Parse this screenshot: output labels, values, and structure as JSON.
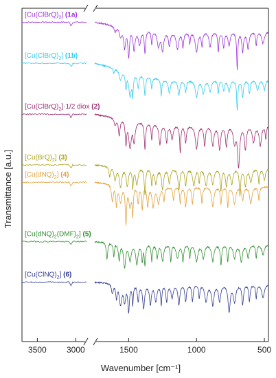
{
  "chart_data": {
    "type": "line",
    "xlabel": "Wavenumber [cm⁻¹]",
    "ylabel": "Transmittance [a.u.]",
    "x_axis": {
      "reversed": true,
      "break": true,
      "ranges": [
        [
          3700,
          2860
        ],
        [
          1750,
          470
        ]
      ],
      "ticks": [
        {
          "value": 3500,
          "label": "3500"
        },
        {
          "value": 3000,
          "label": "3000"
        },
        {
          "value": 1500,
          "label": "1500"
        },
        {
          "value": 1000,
          "label": "1000"
        },
        {
          "value": 500,
          "label": "500"
        }
      ]
    },
    "y_ticks_labeled": false,
    "grid": false,
    "legend_position": "left, above each trace",
    "series": [
      {
        "name": "[Cu(ClBrQ)₂] (1a)",
        "formula": "[Cu(ClBrQ)",
        "sub": "2",
        "suffix": "] ",
        "id": "(1a)",
        "color": "#9b30d9",
        "baseline_high": 0.958,
        "baseline_low": 0.93,
        "bands": [
          [
            1600,
            0.018
          ],
          [
            1560,
            0.03
          ],
          [
            1530,
            0.06
          ],
          [
            1500,
            0.085
          ],
          [
            1460,
            0.065
          ],
          [
            1420,
            0.045
          ],
          [
            1380,
            0.07
          ],
          [
            1330,
            0.04
          ],
          [
            1280,
            0.045
          ],
          [
            1250,
            0.055
          ],
          [
            1200,
            0.04
          ],
          [
            1140,
            0.05
          ],
          [
            1100,
            0.045
          ],
          [
            1050,
            0.035
          ],
          [
            1000,
            0.06
          ],
          [
            960,
            0.04
          ],
          [
            900,
            0.045
          ],
          [
            840,
            0.06
          ],
          [
            800,
            0.045
          ],
          [
            760,
            0.04
          ],
          [
            700,
            0.11
          ],
          [
            660,
            0.06
          ],
          [
            620,
            0.05
          ],
          [
            560,
            0.04
          ],
          [
            510,
            0.035
          ]
        ]
      },
      {
        "name": "[Cu(ClBrQ)₂] (1b)",
        "formula": "[Cu(ClBrQ)",
        "sub": "2",
        "suffix": "] ",
        "id": "(1b)",
        "color": "#33ccee",
        "baseline_high": 0.835,
        "baseline_low": 0.785,
        "bands": [
          [
            1610,
            0.015
          ],
          [
            1560,
            0.03
          ],
          [
            1520,
            0.045
          ],
          [
            1490,
            0.07
          ],
          [
            1470,
            0.06
          ],
          [
            1430,
            0.04
          ],
          [
            1380,
            0.06
          ],
          [
            1330,
            0.035
          ],
          [
            1260,
            0.05
          ],
          [
            1200,
            0.04
          ],
          [
            1130,
            0.045
          ],
          [
            1080,
            0.035
          ],
          [
            1000,
            0.05
          ],
          [
            950,
            0.04
          ],
          [
            900,
            0.035
          ],
          [
            840,
            0.04
          ],
          [
            800,
            0.03
          ],
          [
            760,
            0.035
          ],
          [
            700,
            0.09
          ],
          [
            660,
            0.05
          ],
          [
            610,
            0.04
          ],
          [
            550,
            0.03
          ],
          [
            500,
            0.03
          ]
        ]
      },
      {
        "name": "[Cu(ClBrQ)₂]·1/2 diox (2)",
        "formula": "[Cu(ClBrQ)",
        "sub": "2",
        "suffix": "]·1/2 diox ",
        "id": "(2)",
        "color": "#9c2c72",
        "baseline_high": 0.682,
        "baseline_low": 0.65,
        "bands": [
          [
            1600,
            0.02
          ],
          [
            1570,
            0.05
          ],
          [
            1520,
            0.07
          ],
          [
            1490,
            0.08
          ],
          [
            1460,
            0.06
          ],
          [
            1380,
            0.08
          ],
          [
            1330,
            0.05
          ],
          [
            1270,
            0.06
          ],
          [
            1220,
            0.05
          ],
          [
            1180,
            0.04
          ],
          [
            1120,
            0.08
          ],
          [
            1080,
            0.05
          ],
          [
            1000,
            0.07
          ],
          [
            940,
            0.06
          ],
          [
            880,
            0.06
          ],
          [
            830,
            0.07
          ],
          [
            780,
            0.06
          ],
          [
            720,
            0.05
          ],
          [
            690,
            0.12
          ],
          [
            640,
            0.07
          ],
          [
            580,
            0.05
          ],
          [
            530,
            0.06
          ],
          [
            490,
            0.04
          ]
        ]
      },
      {
        "name": "[Cu(BrQ)₂] (3)",
        "formula": "[Cu(BrQ)",
        "sub": "2",
        "suffix": "] ",
        "id": "(3)",
        "color": "#aaa21c",
        "baseline_high": 0.53,
        "baseline_low": 0.52,
        "bands": [
          [
            1640,
            0.03
          ],
          [
            1600,
            0.04
          ],
          [
            1560,
            0.06
          ],
          [
            1510,
            0.055
          ],
          [
            1470,
            0.06
          ],
          [
            1440,
            0.05
          ],
          [
            1380,
            0.08
          ],
          [
            1330,
            0.05
          ],
          [
            1300,
            0.045
          ],
          [
            1250,
            0.06
          ],
          [
            1200,
            0.045
          ],
          [
            1130,
            0.065
          ],
          [
            1080,
            0.05
          ],
          [
            1020,
            0.05
          ],
          [
            980,
            0.04
          ],
          [
            930,
            0.05
          ],
          [
            880,
            0.045
          ],
          [
            820,
            0.065
          ],
          [
            780,
            0.05
          ],
          [
            740,
            0.045
          ],
          [
            680,
            0.08
          ],
          [
            640,
            0.05
          ],
          [
            600,
            0.04
          ],
          [
            540,
            0.045
          ],
          [
            500,
            0.035
          ]
        ]
      },
      {
        "name": "[Cu(dNQ)₂] (4)",
        "formula": "[Cu(dNQ)",
        "sub": "2",
        "suffix": "] ",
        "id": "(4)",
        "color": "#e3a23a",
        "baseline_high": 0.478,
        "baseline_low": 0.465,
        "bands": [
          [
            1620,
            0.05
          ],
          [
            1590,
            0.06
          ],
          [
            1560,
            0.05
          ],
          [
            1520,
            0.11
          ],
          [
            1490,
            0.06
          ],
          [
            1470,
            0.08
          ],
          [
            1430,
            0.05
          ],
          [
            1400,
            0.07
          ],
          [
            1360,
            0.06
          ],
          [
            1320,
            0.06
          ],
          [
            1280,
            0.05
          ],
          [
            1240,
            0.04
          ],
          [
            1170,
            0.04
          ],
          [
            1120,
            0.05
          ],
          [
            1080,
            0.06
          ],
          [
            1030,
            0.05
          ],
          [
            960,
            0.05
          ],
          [
            880,
            0.06
          ],
          [
            820,
            0.05
          ],
          [
            770,
            0.06
          ],
          [
            720,
            0.05
          ],
          [
            660,
            0.04
          ],
          [
            600,
            0.05
          ],
          [
            540,
            0.04
          ]
        ]
      },
      {
        "name": "[Cu(dNQ)₂(DMF)₂] (5)",
        "formula": "[Cu(dNQ)",
        "sub": "2",
        "suffix": "(DMF)",
        "sub2": "2",
        "suffix2": "] ",
        "id": "(5)",
        "color": "#2e8e2e",
        "baseline_high": 0.3,
        "baseline_low": 0.292,
        "bands": [
          [
            1660,
            0.05
          ],
          [
            1610,
            0.04
          ],
          [
            1570,
            0.05
          ],
          [
            1530,
            0.07
          ],
          [
            1490,
            0.05
          ],
          [
            1440,
            0.06
          ],
          [
            1400,
            0.05
          ],
          [
            1380,
            0.06
          ],
          [
            1330,
            0.05
          ],
          [
            1290,
            0.04
          ],
          [
            1250,
            0.05
          ],
          [
            1190,
            0.05
          ],
          [
            1140,
            0.04
          ],
          [
            1100,
            0.05
          ],
          [
            1050,
            0.04
          ],
          [
            1000,
            0.05
          ],
          [
            950,
            0.04
          ],
          [
            880,
            0.05
          ],
          [
            820,
            0.06
          ],
          [
            770,
            0.05
          ],
          [
            720,
            0.04
          ],
          [
            670,
            0.05
          ],
          [
            620,
            0.04
          ],
          [
            560,
            0.04
          ],
          [
            510,
            0.03
          ]
        ]
      },
      {
        "name": "[Cu(ClNQ)₂] (6)",
        "formula": "[Cu(ClNQ)",
        "sub": "2",
        "suffix": "] ",
        "id": "(6)",
        "color": "#2f3a8f",
        "baseline_high": 0.178,
        "baseline_low": 0.172,
        "bands": [
          [
            1620,
            0.03
          ],
          [
            1590,
            0.04
          ],
          [
            1560,
            0.06
          ],
          [
            1530,
            0.05
          ],
          [
            1500,
            0.08
          ],
          [
            1470,
            0.06
          ],
          [
            1430,
            0.05
          ],
          [
            1390,
            0.07
          ],
          [
            1340,
            0.06
          ],
          [
            1300,
            0.05
          ],
          [
            1260,
            0.06
          ],
          [
            1220,
            0.05
          ],
          [
            1180,
            0.04
          ],
          [
            1130,
            0.06
          ],
          [
            1080,
            0.05
          ],
          [
            1030,
            0.05
          ],
          [
            980,
            0.04
          ],
          [
            930,
            0.05
          ],
          [
            880,
            0.06
          ],
          [
            830,
            0.05
          ],
          [
            760,
            0.08
          ],
          [
            720,
            0.05
          ],
          [
            660,
            0.06
          ],
          [
            610,
            0.05
          ],
          [
            560,
            0.04
          ],
          [
            510,
            0.04
          ]
        ]
      }
    ]
  }
}
